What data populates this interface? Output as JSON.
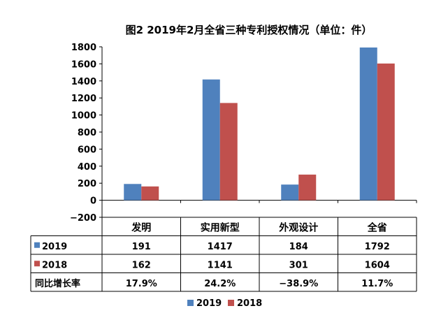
{
  "chart_data": {
    "type": "bar",
    "title": "图2 2019年2月全省三种专利授权情况（单位：件）",
    "categories": [
      "发明",
      "实用新型",
      "外观设计",
      "全省"
    ],
    "series": [
      {
        "name": "2019",
        "values": [
          191,
          1417,
          184,
          1792
        ],
        "color": "#4f81bd"
      },
      {
        "name": "2018",
        "values": [
          162,
          1141,
          301,
          1604
        ],
        "color": "#c0504d"
      }
    ],
    "ylim": [
      -200,
      1800
    ],
    "yticks": [
      "1800",
      "1600",
      "1400",
      "1200",
      "1000",
      "800",
      "600",
      "400",
      "200",
      "0",
      "−200"
    ],
    "xlabel": "",
    "ylabel": "",
    "grid": false,
    "legend_position": "bottom",
    "data_table": {
      "rows": [
        {
          "label": "2019",
          "values": [
            "191",
            "1417",
            "184",
            "1792"
          ]
        },
        {
          "label": "2018",
          "values": [
            "162",
            "1141",
            "301",
            "1604"
          ]
        },
        {
          "label": "同比增长率",
          "values": [
            "17.9%",
            "24.2%",
            "−38.9%",
            "11.7%"
          ]
        }
      ]
    }
  }
}
